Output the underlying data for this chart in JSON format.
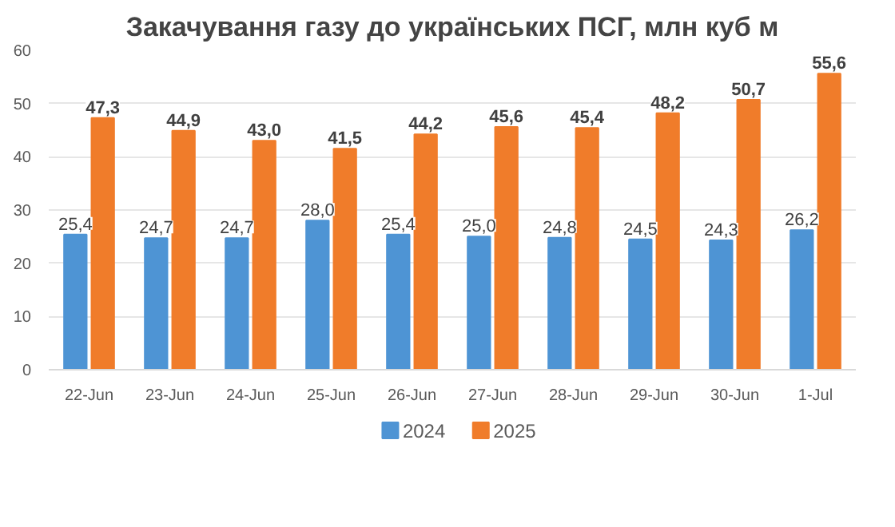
{
  "chart_data": {
    "type": "bar",
    "title": "Закачування газу до українських ПСГ, млн куб м",
    "categories": [
      "22-Jun",
      "23-Jun",
      "24-Jun",
      "25-Jun",
      "26-Jun",
      "27-Jun",
      "28-Jun",
      "29-Jun",
      "30-Jun",
      "1-Jul"
    ],
    "series": [
      {
        "name": "2024",
        "color": "#4e94d4",
        "values": [
          25.4,
          24.7,
          24.7,
          28.0,
          25.4,
          25.0,
          24.8,
          24.5,
          24.3,
          26.2
        ],
        "value_labels": [
          "25,4",
          "24,7",
          "24,7",
          "28,0",
          "25,4",
          "25,0",
          "24,8",
          "24,5",
          "24,3",
          "26,2"
        ]
      },
      {
        "name": "2025",
        "color": "#f07c2a",
        "values": [
          47.3,
          44.9,
          43.0,
          41.5,
          44.2,
          45.6,
          45.4,
          48.2,
          50.7,
          55.6
        ],
        "value_labels": [
          "47,3",
          "44,9",
          "43,0",
          "41,5",
          "44,2",
          "45,6",
          "45,4",
          "48,2",
          "50,7",
          "55,6"
        ]
      }
    ],
    "ylim": [
      0,
      60
    ],
    "yticks": [
      0,
      10,
      20,
      30,
      40,
      50,
      60
    ],
    "grid": "y",
    "legend": "bottom"
  }
}
